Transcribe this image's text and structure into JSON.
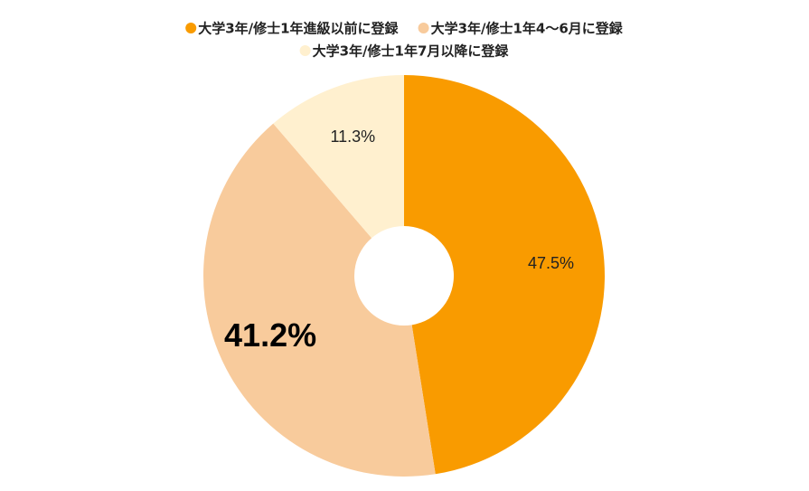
{
  "chart_data": {
    "type": "pie",
    "categories": [
      "大学3年/修士1年進級以前に登録",
      "大学3年/修士1年4～6月に登録",
      "大学3年/修士1年7月以降に登録"
    ],
    "values": [
      47.5,
      41.2,
      11.3
    ],
    "value_labels": [
      "47.5%",
      "41.2%",
      "11.3%"
    ],
    "colors": [
      "#f99b00",
      "#f8cb9c",
      "#fff0cf"
    ],
    "donut": true,
    "legend": "top"
  }
}
